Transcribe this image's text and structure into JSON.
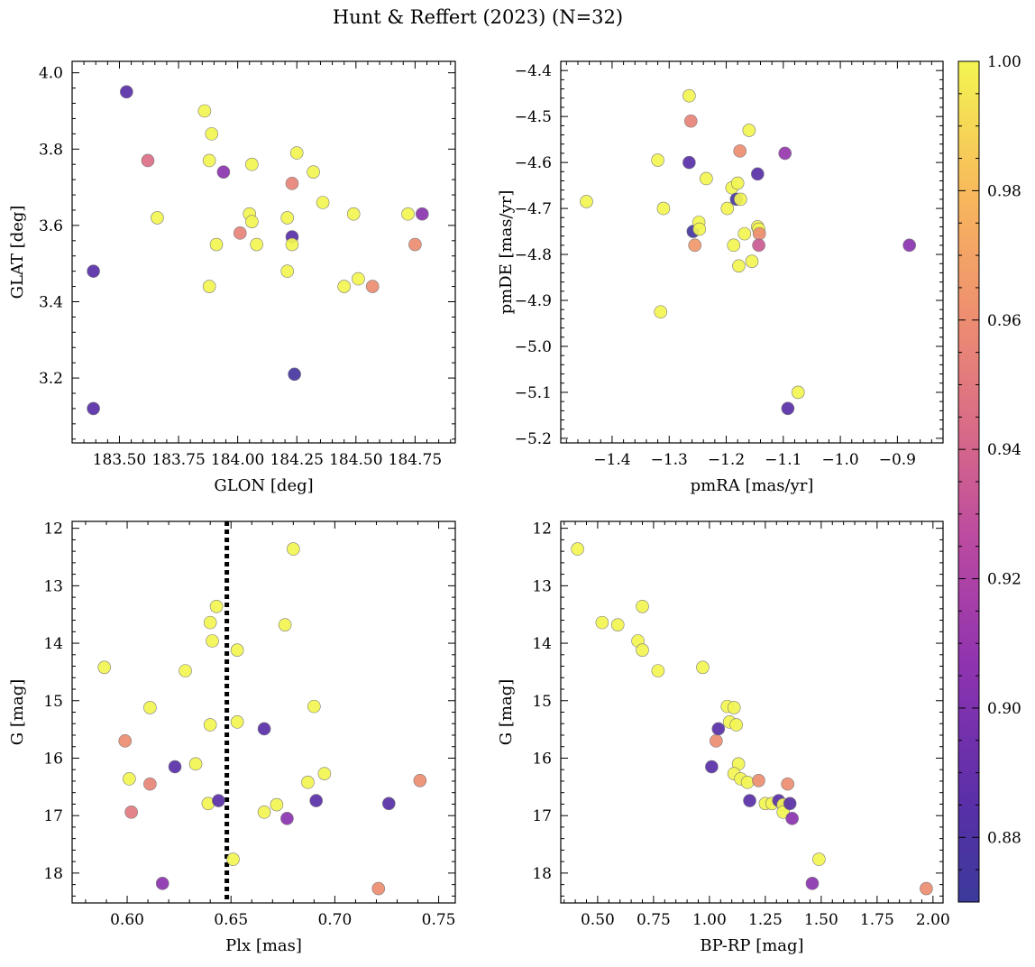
{
  "figure": {
    "title": "Hunt & Reffert (2023) (N=32)",
    "colorbar": {
      "vmin": 0.87,
      "vmax": 1.0,
      "ticks": [
        "0.88",
        "0.90",
        "0.92",
        "0.94",
        "0.96",
        "0.98",
        "1.00"
      ],
      "colormap": "plasma"
    }
  },
  "chart_data": [
    {
      "type": "scatter",
      "xlabel": "GLON [deg]",
      "ylabel": "GLAT [deg]",
      "xlim": [
        183.3,
        184.92
      ],
      "ylim": [
        3.03,
        4.03
      ],
      "xticks": [
        "183.50",
        "183.75",
        "184.00",
        "184.25",
        "184.50",
        "184.75"
      ],
      "yticks": [
        "3.2",
        "3.4",
        "3.6",
        "3.8",
        "4.0"
      ],
      "yinvert": false,
      "points": [
        {
          "x": 183.53,
          "y": 3.95,
          "c": 0.885
        },
        {
          "x": 183.39,
          "y": 3.48,
          "c": 0.885
        },
        {
          "x": 183.39,
          "y": 3.12,
          "c": 0.885
        },
        {
          "x": 183.62,
          "y": 3.77,
          "c": 0.945
        },
        {
          "x": 183.66,
          "y": 3.62,
          "c": 1.0
        },
        {
          "x": 183.86,
          "y": 3.9,
          "c": 1.0
        },
        {
          "x": 183.89,
          "y": 3.84,
          "c": 1.0
        },
        {
          "x": 183.88,
          "y": 3.77,
          "c": 1.0
        },
        {
          "x": 183.94,
          "y": 3.74,
          "c": 0.905
        },
        {
          "x": 183.91,
          "y": 3.55,
          "c": 1.0
        },
        {
          "x": 183.88,
          "y": 3.44,
          "c": 1.0
        },
        {
          "x": 184.06,
          "y": 3.76,
          "c": 1.0
        },
        {
          "x": 184.05,
          "y": 3.63,
          "c": 1.0
        },
        {
          "x": 184.06,
          "y": 3.61,
          "c": 1.0
        },
        {
          "x": 184.08,
          "y": 3.55,
          "c": 1.0
        },
        {
          "x": 184.01,
          "y": 3.58,
          "c": 0.955
        },
        {
          "x": 184.21,
          "y": 3.62,
          "c": 1.0
        },
        {
          "x": 184.23,
          "y": 3.57,
          "c": 0.885
        },
        {
          "x": 184.23,
          "y": 3.55,
          "c": 1.0
        },
        {
          "x": 184.21,
          "y": 3.48,
          "c": 1.0
        },
        {
          "x": 184.23,
          "y": 3.71,
          "c": 0.955
        },
        {
          "x": 184.25,
          "y": 3.79,
          "c": 1.0
        },
        {
          "x": 184.24,
          "y": 3.21,
          "c": 0.875
        },
        {
          "x": 184.32,
          "y": 3.74,
          "c": 1.0
        },
        {
          "x": 184.36,
          "y": 3.66,
          "c": 1.0
        },
        {
          "x": 184.49,
          "y": 3.63,
          "c": 1.0
        },
        {
          "x": 184.45,
          "y": 3.44,
          "c": 1.0
        },
        {
          "x": 184.51,
          "y": 3.46,
          "c": 1.0
        },
        {
          "x": 184.57,
          "y": 3.44,
          "c": 0.96
        },
        {
          "x": 184.72,
          "y": 3.63,
          "c": 1.0
        },
        {
          "x": 184.75,
          "y": 3.55,
          "c": 0.96
        },
        {
          "x": 184.78,
          "y": 3.63,
          "c": 0.905
        }
      ]
    },
    {
      "type": "scatter",
      "xlabel": "pmRA [mas/yr]",
      "ylabel": "pmDE [mas/yr]",
      "xlim": [
        -1.49,
        -0.82
      ],
      "ylim": [
        -5.21,
        -4.38
      ],
      "xticks": [
        "-1.4",
        "-1.3",
        "-1.2",
        "-1.1",
        "-1.0",
        "-0.9"
      ],
      "yticks": [
        "-5.2",
        "-5.1",
        "-5.0",
        "-4.9",
        "-4.8",
        "-4.7",
        "-4.6",
        "-4.5",
        "-4.4"
      ],
      "yinvert": false,
      "points": [
        {
          "x": -1.445,
          "y": -4.685,
          "c": 1.0
        },
        {
          "x": -1.32,
          "y": -4.595,
          "c": 1.0
        },
        {
          "x": -1.31,
          "y": -4.7,
          "c": 1.0
        },
        {
          "x": -1.315,
          "y": -4.925,
          "c": 1.0
        },
        {
          "x": -1.265,
          "y": -4.455,
          "c": 1.0
        },
        {
          "x": -1.262,
          "y": -4.51,
          "c": 0.955
        },
        {
          "x": -1.265,
          "y": -4.6,
          "c": 0.885
        },
        {
          "x": -1.258,
          "y": -4.75,
          "c": 0.875
        },
        {
          "x": -1.248,
          "y": -4.73,
          "c": 1.0
        },
        {
          "x": -1.247,
          "y": -4.745,
          "c": 1.0
        },
        {
          "x": -1.255,
          "y": -4.78,
          "c": 0.965
        },
        {
          "x": -1.235,
          "y": -4.635,
          "c": 1.0
        },
        {
          "x": -1.198,
          "y": -4.7,
          "c": 1.0
        },
        {
          "x": -1.19,
          "y": -4.655,
          "c": 1.0
        },
        {
          "x": -1.18,
          "y": -4.645,
          "c": 1.0
        },
        {
          "x": -1.176,
          "y": -4.575,
          "c": 0.96
        },
        {
          "x": -1.182,
          "y": -4.68,
          "c": 0.875
        },
        {
          "x": -1.175,
          "y": -4.68,
          "c": 1.0
        },
        {
          "x": -1.187,
          "y": -4.78,
          "c": 1.0
        },
        {
          "x": -1.178,
          "y": -4.825,
          "c": 1.0
        },
        {
          "x": -1.168,
          "y": -4.755,
          "c": 1.0
        },
        {
          "x": -1.16,
          "y": -4.53,
          "c": 1.0
        },
        {
          "x": -1.155,
          "y": -4.815,
          "c": 1.0
        },
        {
          "x": -1.145,
          "y": -4.625,
          "c": 0.885
        },
        {
          "x": -1.145,
          "y": -4.74,
          "c": 1.0
        },
        {
          "x": -1.143,
          "y": -4.745,
          "c": 1.0
        },
        {
          "x": -1.142,
          "y": -4.755,
          "c": 0.96
        },
        {
          "x": -1.143,
          "y": -4.78,
          "c": 0.935
        },
        {
          "x": -1.097,
          "y": -4.58,
          "c": 0.91
        },
        {
          "x": -1.092,
          "y": -5.135,
          "c": 0.885
        },
        {
          "x": -1.074,
          "y": -5.1,
          "c": 1.0
        },
        {
          "x": -0.879,
          "y": -4.78,
          "c": 0.905
        }
      ]
    },
    {
      "type": "scatter",
      "xlabel": "Plx [mas]",
      "ylabel": "G [mag]",
      "xlim": [
        0.5735,
        0.758
      ],
      "ylim": [
        18.52,
        11.88
      ],
      "xticks": [
        "0.60",
        "0.65",
        "0.70",
        "0.75"
      ],
      "yticks": [
        "12",
        "13",
        "14",
        "15",
        "16",
        "17",
        "18"
      ],
      "yinvert": true,
      "vline": {
        "x": 0.648,
        "style": "dotted"
      },
      "points": [
        {
          "x": 0.589,
          "y": 14.42,
          "c": 1.0
        },
        {
          "x": 0.599,
          "y": 15.7,
          "c": 0.96
        },
        {
          "x": 0.601,
          "y": 16.36,
          "c": 1.0
        },
        {
          "x": 0.602,
          "y": 16.94,
          "c": 0.95
        },
        {
          "x": 0.611,
          "y": 15.12,
          "c": 1.0
        },
        {
          "x": 0.611,
          "y": 16.45,
          "c": 0.955
        },
        {
          "x": 0.617,
          "y": 18.18,
          "c": 0.905
        },
        {
          "x": 0.623,
          "y": 16.15,
          "c": 0.885
        },
        {
          "x": 0.628,
          "y": 14.48,
          "c": 1.0
        },
        {
          "x": 0.633,
          "y": 16.1,
          "c": 1.0
        },
        {
          "x": 0.64,
          "y": 13.64,
          "c": 1.0
        },
        {
          "x": 0.641,
          "y": 13.96,
          "c": 1.0
        },
        {
          "x": 0.64,
          "y": 15.42,
          "c": 1.0
        },
        {
          "x": 0.639,
          "y": 16.79,
          "c": 1.0
        },
        {
          "x": 0.643,
          "y": 13.36,
          "c": 1.0
        },
        {
          "x": 0.644,
          "y": 16.74,
          "c": 0.885
        },
        {
          "x": 0.651,
          "y": 17.76,
          "c": 1.0
        },
        {
          "x": 0.653,
          "y": 14.12,
          "c": 1.0
        },
        {
          "x": 0.653,
          "y": 15.37,
          "c": 1.0
        },
        {
          "x": 0.666,
          "y": 15.49,
          "c": 0.885
        },
        {
          "x": 0.666,
          "y": 16.94,
          "c": 1.0
        },
        {
          "x": 0.672,
          "y": 16.81,
          "c": 1.0
        },
        {
          "x": 0.676,
          "y": 13.68,
          "c": 1.0
        },
        {
          "x": 0.677,
          "y": 17.05,
          "c": 0.905
        },
        {
          "x": 0.68,
          "y": 12.36,
          "c": 1.0
        },
        {
          "x": 0.687,
          "y": 16.42,
          "c": 1.0
        },
        {
          "x": 0.69,
          "y": 15.1,
          "c": 1.0
        },
        {
          "x": 0.691,
          "y": 16.74,
          "c": 0.885
        },
        {
          "x": 0.695,
          "y": 16.27,
          "c": 1.0
        },
        {
          "x": 0.721,
          "y": 18.27,
          "c": 0.96
        },
        {
          "x": 0.726,
          "y": 16.79,
          "c": 0.885
        },
        {
          "x": 0.741,
          "y": 16.39,
          "c": 0.96
        }
      ]
    },
    {
      "type": "scatter",
      "xlabel": "BP-RP [mag]",
      "ylabel": "G [mag]",
      "xlim": [
        0.335,
        2.045
      ],
      "ylim": [
        18.52,
        11.88
      ],
      "xticks": [
        "0.50",
        "0.75",
        "1.00",
        "1.25",
        "1.50",
        "1.75",
        "2.00"
      ],
      "yticks": [
        "12",
        "13",
        "14",
        "15",
        "16",
        "17",
        "18"
      ],
      "yinvert": true,
      "points": [
        {
          "x": 0.41,
          "y": 12.36,
          "c": 1.0
        },
        {
          "x": 0.52,
          "y": 13.64,
          "c": 1.0
        },
        {
          "x": 0.59,
          "y": 13.68,
          "c": 1.0
        },
        {
          "x": 0.68,
          "y": 13.96,
          "c": 1.0
        },
        {
          "x": 0.7,
          "y": 13.36,
          "c": 1.0
        },
        {
          "x": 0.7,
          "y": 14.12,
          "c": 1.0
        },
        {
          "x": 0.77,
          "y": 14.48,
          "c": 1.0
        },
        {
          "x": 0.97,
          "y": 14.42,
          "c": 1.0
        },
        {
          "x": 1.01,
          "y": 16.15,
          "c": 0.885
        },
        {
          "x": 1.03,
          "y": 15.7,
          "c": 0.96
        },
        {
          "x": 1.04,
          "y": 15.49,
          "c": 0.885
        },
        {
          "x": 1.08,
          "y": 15.1,
          "c": 1.0
        },
        {
          "x": 1.09,
          "y": 15.37,
          "c": 1.0
        },
        {
          "x": 1.11,
          "y": 15.12,
          "c": 1.0
        },
        {
          "x": 1.12,
          "y": 15.42,
          "c": 1.0
        },
        {
          "x": 1.13,
          "y": 16.1,
          "c": 1.0
        },
        {
          "x": 1.11,
          "y": 16.27,
          "c": 1.0
        },
        {
          "x": 1.14,
          "y": 16.36,
          "c": 1.0
        },
        {
          "x": 1.17,
          "y": 16.42,
          "c": 1.0
        },
        {
          "x": 1.18,
          "y": 16.74,
          "c": 0.885
        },
        {
          "x": 1.22,
          "y": 16.39,
          "c": 0.96
        },
        {
          "x": 1.25,
          "y": 16.79,
          "c": 1.0
        },
        {
          "x": 1.28,
          "y": 16.79,
          "c": 1.0
        },
        {
          "x": 1.31,
          "y": 16.74,
          "c": 0.885
        },
        {
          "x": 1.33,
          "y": 16.81,
          "c": 1.0
        },
        {
          "x": 1.33,
          "y": 16.94,
          "c": 1.0
        },
        {
          "x": 1.35,
          "y": 16.45,
          "c": 0.96
        },
        {
          "x": 1.36,
          "y": 16.79,
          "c": 0.885
        },
        {
          "x": 1.37,
          "y": 17.05,
          "c": 0.905
        },
        {
          "x": 1.46,
          "y": 18.18,
          "c": 0.905
        },
        {
          "x": 1.49,
          "y": 17.76,
          "c": 1.0
        },
        {
          "x": 1.97,
          "y": 18.27,
          "c": 0.96
        }
      ]
    }
  ]
}
